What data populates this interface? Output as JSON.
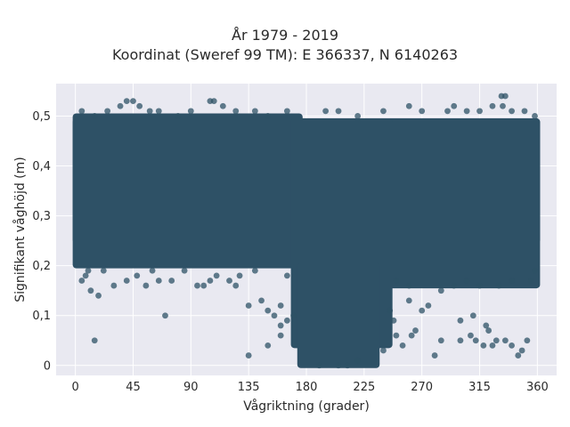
{
  "chart_data": {
    "type": "scatter",
    "title_lines": [
      "År 1979 - 2019",
      "Koordinat (Sweref 99 TM): E 366337, N 6140263"
    ],
    "xlabel": "Vågriktning (grader)",
    "ylabel": "Signifikant våghöjd (m)",
    "xlim": [
      -15,
      375
    ],
    "ylim": [
      -0.02,
      0.565
    ],
    "xticks": [
      0,
      45,
      90,
      135,
      180,
      225,
      270,
      315,
      360
    ],
    "xtick_labels": [
      "0",
      "45",
      "90",
      "135",
      "180",
      "225",
      "270",
      "315",
      "360"
    ],
    "yticks": [
      0,
      0.1,
      0.2,
      0.3,
      0.4,
      0.5
    ],
    "ytick_labels": [
      "0",
      "0,1",
      "0,2",
      "0,3",
      "0,4",
      "0,5"
    ],
    "grid": true,
    "legend": false,
    "colors": {
      "marker": "#2e5166",
      "plot_bg": "#e9e9f1",
      "grid": "#ffffff"
    },
    "dense_regions": [
      {
        "x": [
          0,
          360
        ],
        "y": [
          0.25,
          0.49
        ]
      },
      {
        "x": [
          0,
          175
        ],
        "y": [
          0.2,
          0.5
        ]
      },
      {
        "x": [
          240,
          360
        ],
        "y": [
          0.16,
          0.49
        ]
      },
      {
        "x": [
          170,
          245
        ],
        "y": [
          0.04,
          0.49
        ]
      },
      {
        "x": [
          175,
          235
        ],
        "y": [
          0.0,
          0.2
        ]
      }
    ],
    "points": [
      [
        15,
        0.05
      ],
      [
        70,
        0.1
      ],
      [
        135,
        0.02
      ],
      [
        150,
        0.04
      ],
      [
        160,
        0.06
      ],
      [
        165,
        0.09
      ],
      [
        190,
        0.0
      ],
      [
        205,
        0.0
      ],
      [
        212,
        0.0
      ],
      [
        220,
        0.01
      ],
      [
        240,
        0.03
      ],
      [
        250,
        0.06
      ],
      [
        255,
        0.04
      ],
      [
        262,
        0.06
      ],
      [
        265,
        0.07
      ],
      [
        280,
        0.02
      ],
      [
        285,
        0.05
      ],
      [
        300,
        0.05
      ],
      [
        308,
        0.06
      ],
      [
        312,
        0.05
      ],
      [
        318,
        0.04
      ],
      [
        322,
        0.07
      ],
      [
        325,
        0.04
      ],
      [
        328,
        0.05
      ],
      [
        335,
        0.05
      ],
      [
        340,
        0.04
      ],
      [
        345,
        0.02
      ],
      [
        348,
        0.03
      ],
      [
        352,
        0.05
      ],
      [
        300,
        0.09
      ],
      [
        310,
        0.1
      ],
      [
        320,
        0.08
      ],
      [
        270,
        0.11
      ],
      [
        260,
        0.13
      ],
      [
        275,
        0.12
      ],
      [
        12,
        0.15
      ],
      [
        18,
        0.14
      ],
      [
        30,
        0.16
      ],
      [
        55,
        0.16
      ],
      [
        65,
        0.17
      ],
      [
        95,
        0.16
      ],
      [
        100,
        0.16
      ],
      [
        120,
        0.17
      ],
      [
        125,
        0.16
      ],
      [
        135,
        0.12
      ],
      [
        145,
        0.13
      ],
      [
        150,
        0.11
      ],
      [
        160,
        0.12
      ],
      [
        155,
        0.1
      ],
      [
        160,
        0.08
      ],
      [
        170,
        0.1
      ],
      [
        245,
        0.11
      ],
      [
        248,
        0.09
      ],
      [
        5,
        0.17
      ],
      [
        8,
        0.18
      ],
      [
        10,
        0.19
      ],
      [
        22,
        0.19
      ],
      [
        40,
        0.17
      ],
      [
        48,
        0.18
      ],
      [
        60,
        0.19
      ],
      [
        75,
        0.17
      ],
      [
        85,
        0.19
      ],
      [
        105,
        0.17
      ],
      [
        110,
        0.18
      ],
      [
        128,
        0.18
      ],
      [
        140,
        0.19
      ],
      [
        165,
        0.18
      ],
      [
        250,
        0.17
      ],
      [
        260,
        0.16
      ],
      [
        285,
        0.15
      ],
      [
        295,
        0.16
      ],
      [
        305,
        0.17
      ],
      [
        315,
        0.16
      ],
      [
        330,
        0.16
      ],
      [
        340,
        0.17
      ],
      [
        355,
        0.17
      ],
      [
        358,
        0.19
      ],
      [
        5,
        0.51
      ],
      [
        15,
        0.5
      ],
      [
        25,
        0.51
      ],
      [
        35,
        0.52
      ],
      [
        40,
        0.53
      ],
      [
        45,
        0.53
      ],
      [
        50,
        0.52
      ],
      [
        58,
        0.51
      ],
      [
        65,
        0.51
      ],
      [
        80,
        0.5
      ],
      [
        90,
        0.51
      ],
      [
        105,
        0.53
      ],
      [
        108,
        0.53
      ],
      [
        115,
        0.52
      ],
      [
        125,
        0.51
      ],
      [
        140,
        0.51
      ],
      [
        150,
        0.5
      ],
      [
        165,
        0.51
      ],
      [
        195,
        0.51
      ],
      [
        205,
        0.51
      ],
      [
        220,
        0.5
      ],
      [
        240,
        0.51
      ],
      [
        260,
        0.52
      ],
      [
        270,
        0.51
      ],
      [
        290,
        0.51
      ],
      [
        295,
        0.52
      ],
      [
        305,
        0.51
      ],
      [
        315,
        0.51
      ],
      [
        325,
        0.52
      ],
      [
        332,
        0.54
      ],
      [
        335,
        0.54
      ],
      [
        333,
        0.52
      ],
      [
        340,
        0.51
      ],
      [
        350,
        0.51
      ],
      [
        358,
        0.5
      ]
    ]
  }
}
